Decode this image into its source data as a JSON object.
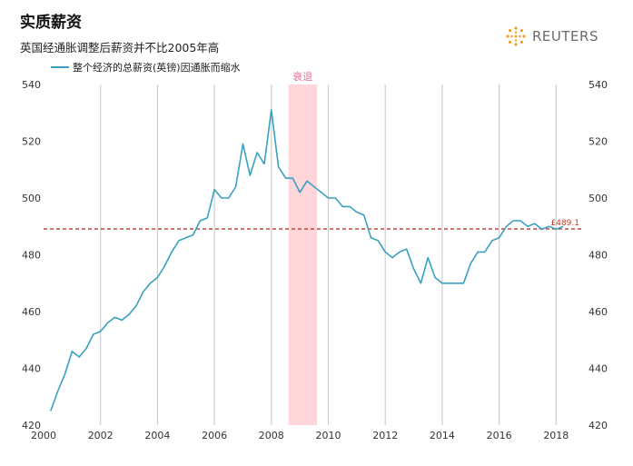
{
  "header": {
    "title": "实质薪资",
    "subtitle": "英国经通胀调整后薪资并不比2005年高",
    "brand": "REUTERS"
  },
  "colors": {
    "line": "#3aa0c0",
    "reference": "#c0392b",
    "recession": "#ffd6da",
    "recession_label": "#e0739a",
    "grid": "#cfcfcf",
    "brand": "#f0a22e"
  },
  "chart_data": {
    "type": "line",
    "xlim": [
      2000,
      2018.5
    ],
    "ylim": [
      420,
      540
    ],
    "x_ticks": [
      "2000",
      "2002",
      "2004",
      "2006",
      "2008",
      "2010",
      "2012",
      "2014",
      "2016",
      "2018"
    ],
    "y_ticks": [
      "420",
      "440",
      "460",
      "480",
      "500",
      "520",
      "540"
    ],
    "grid": "vertical",
    "legend": "top-left",
    "series": [
      {
        "name": "整个经济的总薪资(英镑)因通胀而缩水",
        "x": [
          2000.25,
          2000.5,
          2000.75,
          2001.0,
          2001.25,
          2001.5,
          2001.75,
          2002.0,
          2002.25,
          2002.5,
          2002.75,
          2003.0,
          2003.25,
          2003.5,
          2003.75,
          2004.0,
          2004.25,
          2004.5,
          2004.75,
          2005.0,
          2005.25,
          2005.5,
          2005.75,
          2006.0,
          2006.25,
          2006.5,
          2006.75,
          2007.0,
          2007.25,
          2007.5,
          2007.75,
          2008.0,
          2008.25,
          2008.5,
          2008.75,
          2009.0,
          2009.25,
          2009.5,
          2009.75,
          2010.0,
          2010.25,
          2010.5,
          2010.75,
          2011.0,
          2011.25,
          2011.5,
          2011.75,
          2012.0,
          2012.25,
          2012.5,
          2012.75,
          2013.0,
          2013.25,
          2013.5,
          2013.75,
          2014.0,
          2014.25,
          2014.5,
          2014.75,
          2015.0,
          2015.25,
          2015.5,
          2015.75,
          2016.0,
          2016.25,
          2016.5,
          2016.75,
          2017.0,
          2017.25,
          2017.5,
          2017.75,
          2018.0,
          2018.25
        ],
        "values": [
          425,
          432,
          438,
          446,
          444,
          447,
          452,
          453,
          456,
          458,
          457,
          459,
          462,
          467,
          470,
          472,
          476,
          481,
          485,
          486,
          487,
          492,
          493,
          503,
          500,
          500,
          504,
          519,
          508,
          516,
          512,
          531,
          511,
          507,
          507,
          502,
          506,
          504,
          502,
          500,
          500,
          497,
          497,
          495,
          494,
          486,
          485,
          481,
          479,
          481,
          482,
          475,
          470,
          479,
          472,
          470,
          470,
          470,
          470,
          477,
          481,
          481,
          485,
          486,
          490,
          492,
          492,
          490,
          491,
          489,
          490,
          489,
          490
        ]
      }
    ],
    "reference_line": {
      "value": 489.1,
      "label": "£489.1"
    },
    "shaded_region": {
      "x": [
        2008.6,
        2009.6
      ],
      "label": "衰退"
    }
  }
}
